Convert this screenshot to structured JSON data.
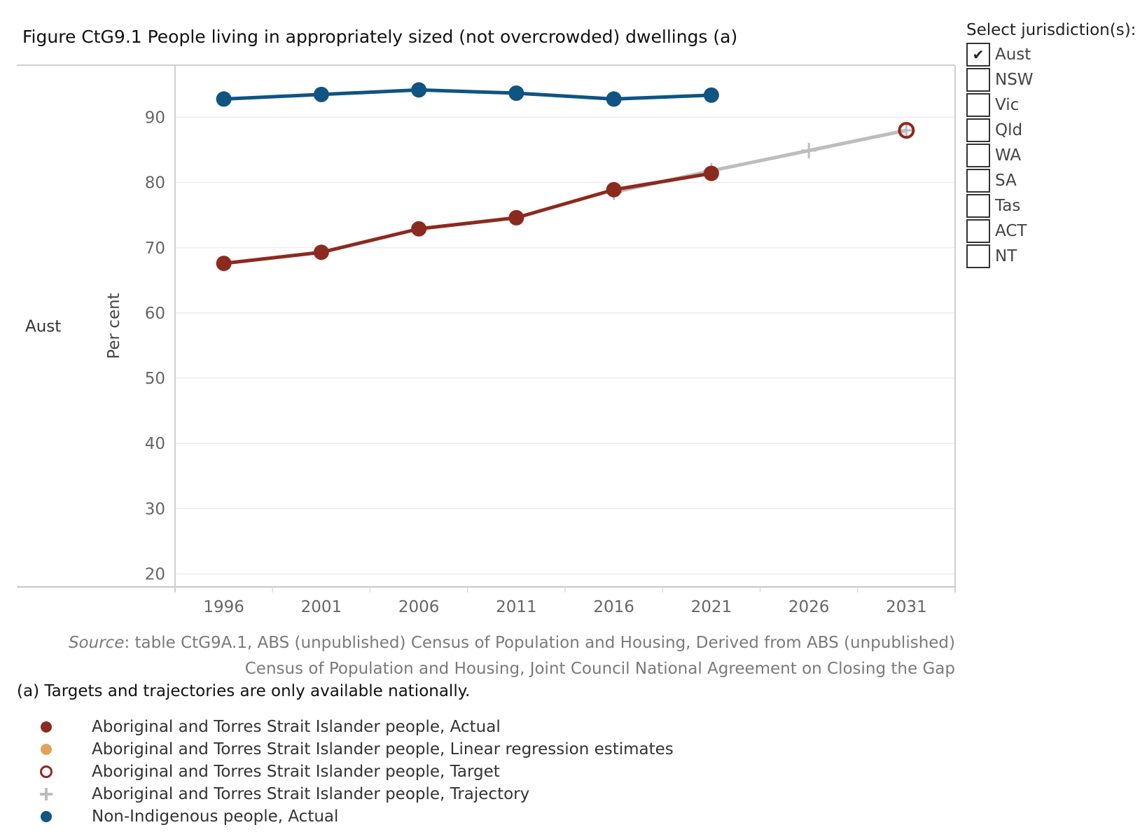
{
  "title": "Figure CtG9.1 People living in appropriately sized (not overcrowded) dwellings (a)",
  "filter": {
    "title": "Select jurisdiction(s):",
    "options": [
      {
        "label": "Aust",
        "checked": true,
        "mark": "✔"
      },
      {
        "label": "NSW",
        "checked": false,
        "mark": ""
      },
      {
        "label": "Vic",
        "checked": false,
        "mark": ""
      },
      {
        "label": "Qld",
        "checked": false,
        "mark": ""
      },
      {
        "label": "WA",
        "checked": false,
        "mark": ""
      },
      {
        "label": "SA",
        "checked": false,
        "mark": ""
      },
      {
        "label": "Tas",
        "checked": false,
        "mark": ""
      },
      {
        "label": "ACT",
        "checked": false,
        "mark": ""
      },
      {
        "label": "NT",
        "checked": false,
        "mark": ""
      }
    ]
  },
  "chart_data": {
    "type": "line",
    "row_label": "Aust",
    "ylabel": "Per cent",
    "xlabel": "",
    "x": [
      "1996",
      "2001",
      "2006",
      "2011",
      "2016",
      "2021",
      "2026",
      "2031"
    ],
    "ylim": [
      18,
      98
    ],
    "yticks": [
      20,
      30,
      40,
      50,
      60,
      70,
      80,
      90
    ],
    "grid": true,
    "series": [
      {
        "name": "Aboriginal and Torres Strait Islander people, Actual",
        "color": "#8c2a20",
        "x": [
          "1996",
          "2001",
          "2006",
          "2011",
          "2016",
          "2021"
        ],
        "values": [
          67.6,
          69.3,
          72.9,
          74.6,
          78.9,
          81.4
        ]
      },
      {
        "name": "Aboriginal and Torres Strait Islander people, Linear regression estimates",
        "color": "#e0a35a",
        "x": [],
        "values": []
      },
      {
        "name": "Aboriginal and Torres Strait Islander people, Target",
        "color": "#8c2a20",
        "x": [
          "2031"
        ],
        "values": [
          88.0
        ]
      },
      {
        "name": "Aboriginal and Torres Strait Islander people, Trajectory",
        "color": "#bdbdbd",
        "x": [
          "2016",
          "2021",
          "2026",
          "2031"
        ],
        "values": [
          78.5,
          81.8,
          84.9,
          88.0
        ]
      },
      {
        "name": "Non-Indigenous people, Actual",
        "color": "#0f5482",
        "x": [
          "1996",
          "2001",
          "2006",
          "2011",
          "2016",
          "2021"
        ],
        "values": [
          92.8,
          93.5,
          94.2,
          93.7,
          92.8,
          93.4
        ]
      }
    ]
  },
  "source": {
    "label": "Source",
    "text": ": table CtG9A.1, ABS (unpublished) Census of Population and Housing, Derived from ABS (unpublished) Census of Population and Housing, Joint Council National Agreement on Closing the Gap"
  },
  "footnote": "(a) Targets and trajectories are only available nationally.",
  "legend": [
    {
      "label": "Aboriginal and Torres Strait Islander people, Actual",
      "marker": "dot",
      "color": "#8c2a20"
    },
    {
      "label": "Aboriginal and Torres Strait Islander people, Linear regression estimates",
      "marker": "dot",
      "color": "#e0a35a"
    },
    {
      "label": "Aboriginal and Torres Strait Islander people, Target",
      "marker": "ring",
      "color": "#8c2a20"
    },
    {
      "label": "Aboriginal and Torres Strait Islander people, Trajectory",
      "marker": "plus",
      "color": "#bdbdbd"
    },
    {
      "label": "Non-Indigenous people, Actual",
      "marker": "dot",
      "color": "#0f5482"
    }
  ]
}
